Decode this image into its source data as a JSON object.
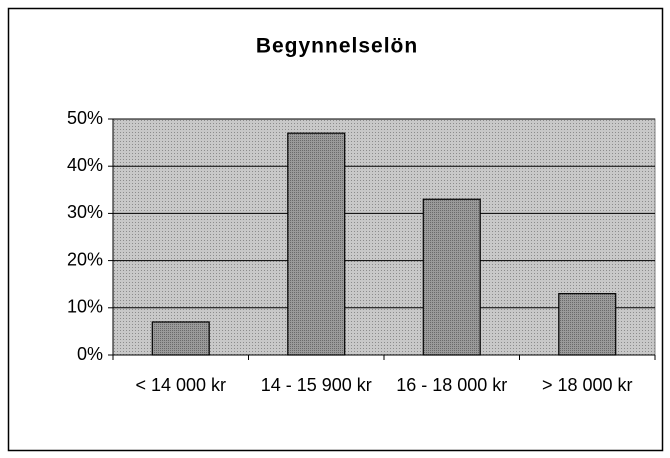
{
  "chart_data": {
    "type": "bar",
    "title": "Begynnelselön",
    "categories": [
      "< 14 000 kr",
      "14 - 15 900 kr",
      "16 - 18 000 kr",
      "> 18 000 kr"
    ],
    "values": [
      7,
      47,
      33,
      13
    ],
    "color": "#8a8a8a",
    "ylim": [
      0,
      50
    ],
    "yticks": [
      {
        "value": 0,
        "label": "0%"
      },
      {
        "value": 10,
        "label": "10%"
      },
      {
        "value": 20,
        "label": "20%"
      },
      {
        "value": 30,
        "label": "30%"
      },
      {
        "value": 40,
        "label": "40%"
      },
      {
        "value": 50,
        "label": "50%"
      }
    ],
    "grid": true
  }
}
